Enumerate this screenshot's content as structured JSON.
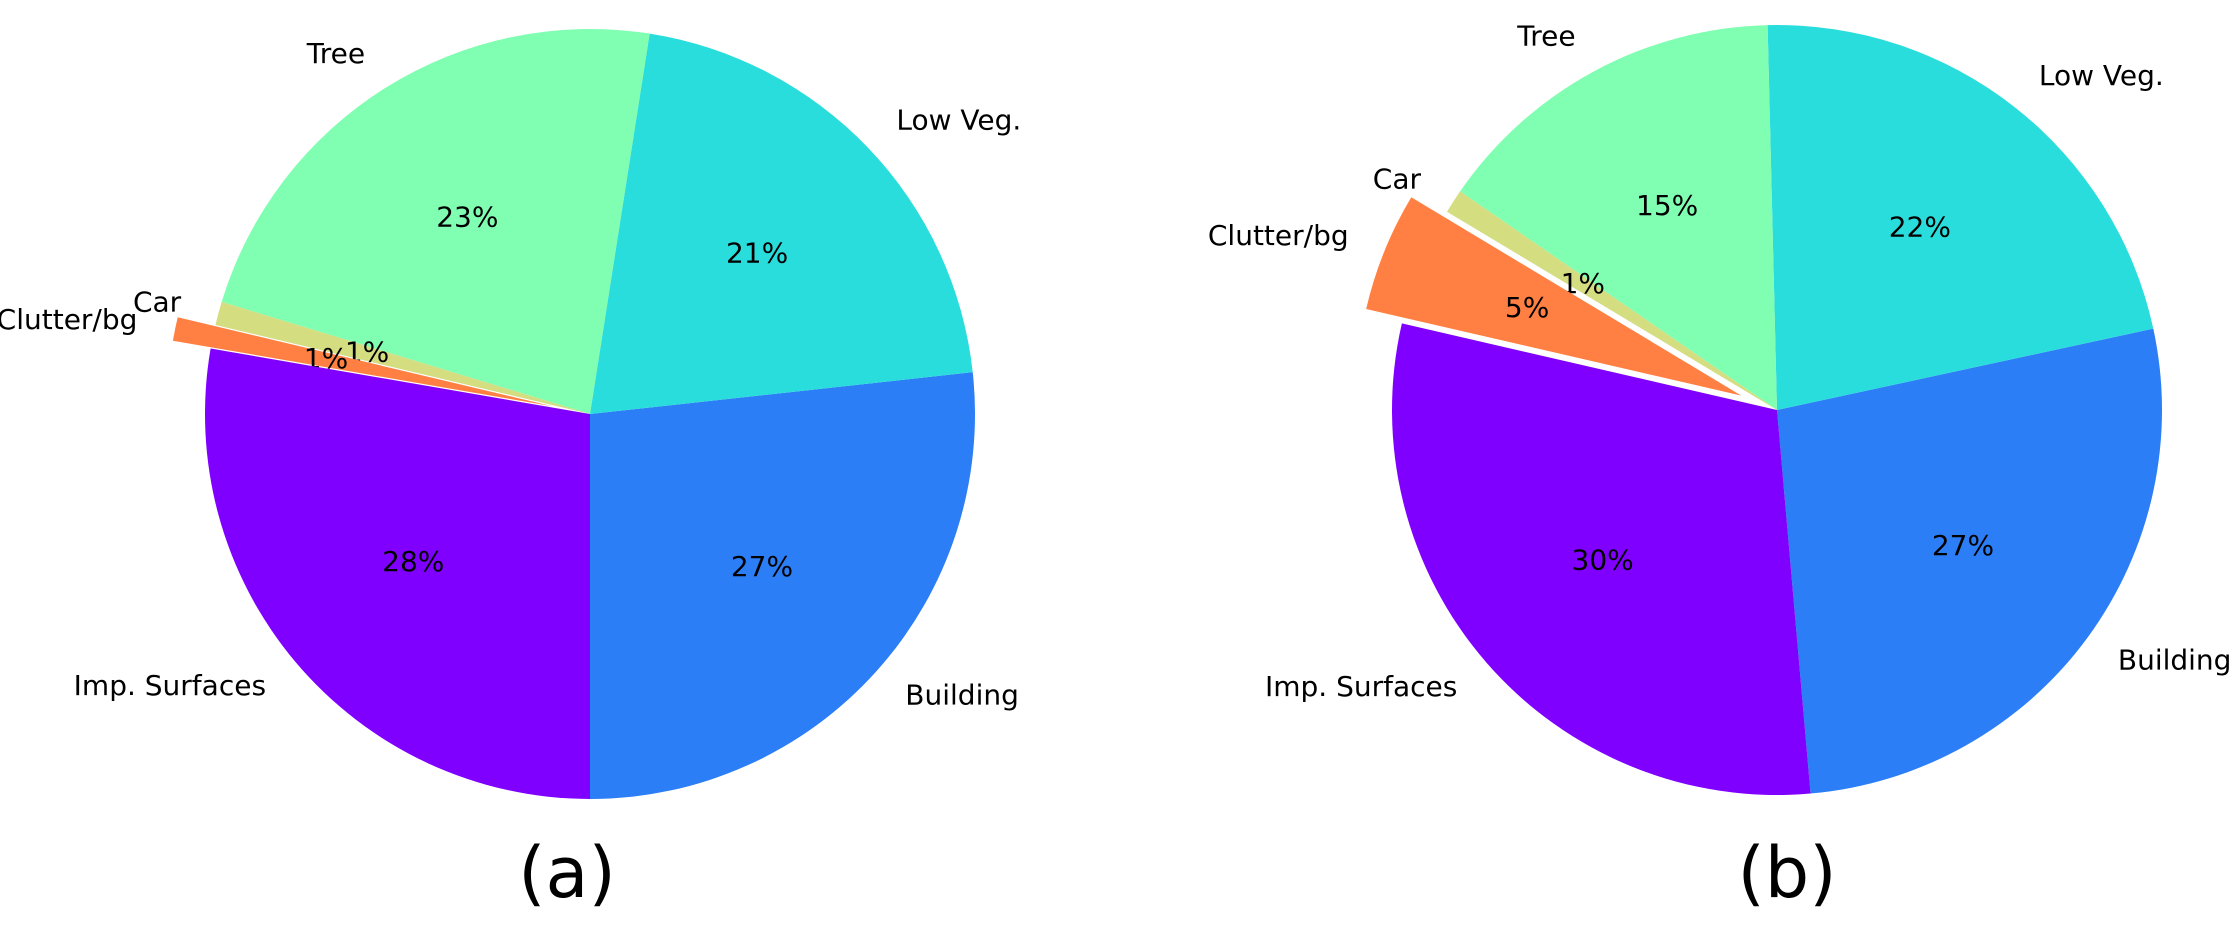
{
  "chart_data": [
    {
      "type": "pie",
      "title": "(a)",
      "categories": [
        "Building",
        "Low Veg.",
        "Tree",
        "Car",
        "Clutter/bg",
        "Imp. Surfaces"
      ],
      "values": [
        27,
        21,
        23,
        1,
        1,
        28
      ],
      "value_labels": [
        "27%",
        "21%",
        "23%",
        "1%",
        "1%",
        "28%"
      ],
      "colors": [
        "#2c7ef7",
        "#2adddd",
        "#80feb2",
        "#d4dd80",
        "#ff8042",
        "#8000ff"
      ],
      "startangle": -90,
      "explode": [
        0,
        0,
        0,
        0,
        0.1,
        0
      ]
    },
    {
      "type": "pie",
      "title": "(b)",
      "categories": [
        "Building",
        "Low Veg.",
        "Tree",
        "Car",
        "Clutter/bg",
        "Imp. Surfaces"
      ],
      "values": [
        27,
        22,
        15,
        1,
        5,
        30
      ],
      "value_labels": [
        "27%",
        "22%",
        "15%",
        "1%",
        "5%",
        "30%"
      ],
      "colors": [
        "#2c7ef7",
        "#2adddd",
        "#80feb2",
        "#d4dd80",
        "#ff8042",
        "#8000ff"
      ],
      "startangle": -85,
      "explode": [
        0,
        0,
        0,
        0,
        0.1,
        0
      ]
    }
  ]
}
